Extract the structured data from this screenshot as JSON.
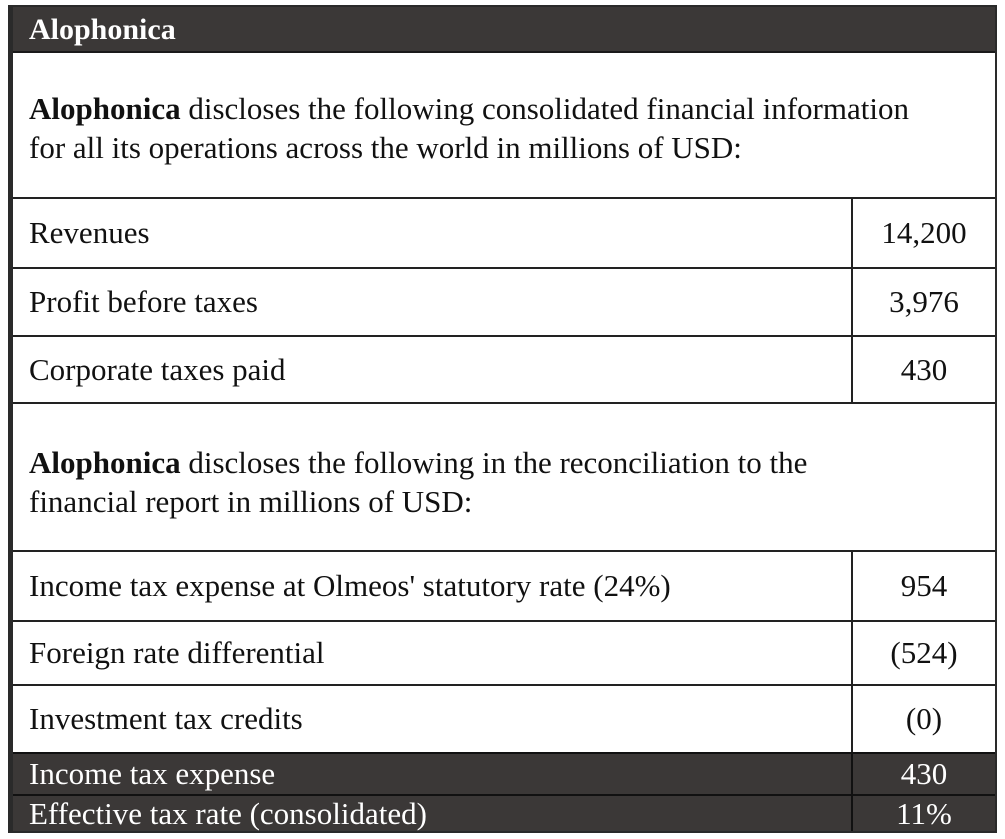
{
  "title": "Alophonica",
  "intro1": {
    "company": "Alophonica",
    "text_line1": " discloses the following consolidated financial information",
    "text_line2": "for all its operations across the world in millions of USD:"
  },
  "table1": [
    {
      "label": "Revenues",
      "value": "14,200"
    },
    {
      "label": "Profit before taxes",
      "value": "3,976"
    },
    {
      "label": "Corporate taxes paid",
      "value": "430"
    }
  ],
  "intro2": {
    "company": "Alophonica",
    "text_line1": " discloses the following in the reconciliation to the",
    "text_line2": "financial report in millions of USD:"
  },
  "table2": [
    {
      "label": "Income tax expense at Olmeos' statutory rate (24%)",
      "value": "954"
    },
    {
      "label": "Foreign rate differential",
      "value": "(524)"
    },
    {
      "label": "Investment tax credits",
      "value": "(0)"
    }
  ],
  "totals": [
    {
      "label": "Income tax expense",
      "value": "430"
    },
    {
      "label": "Effective tax rate (consolidated)",
      "value": "11%"
    }
  ]
}
